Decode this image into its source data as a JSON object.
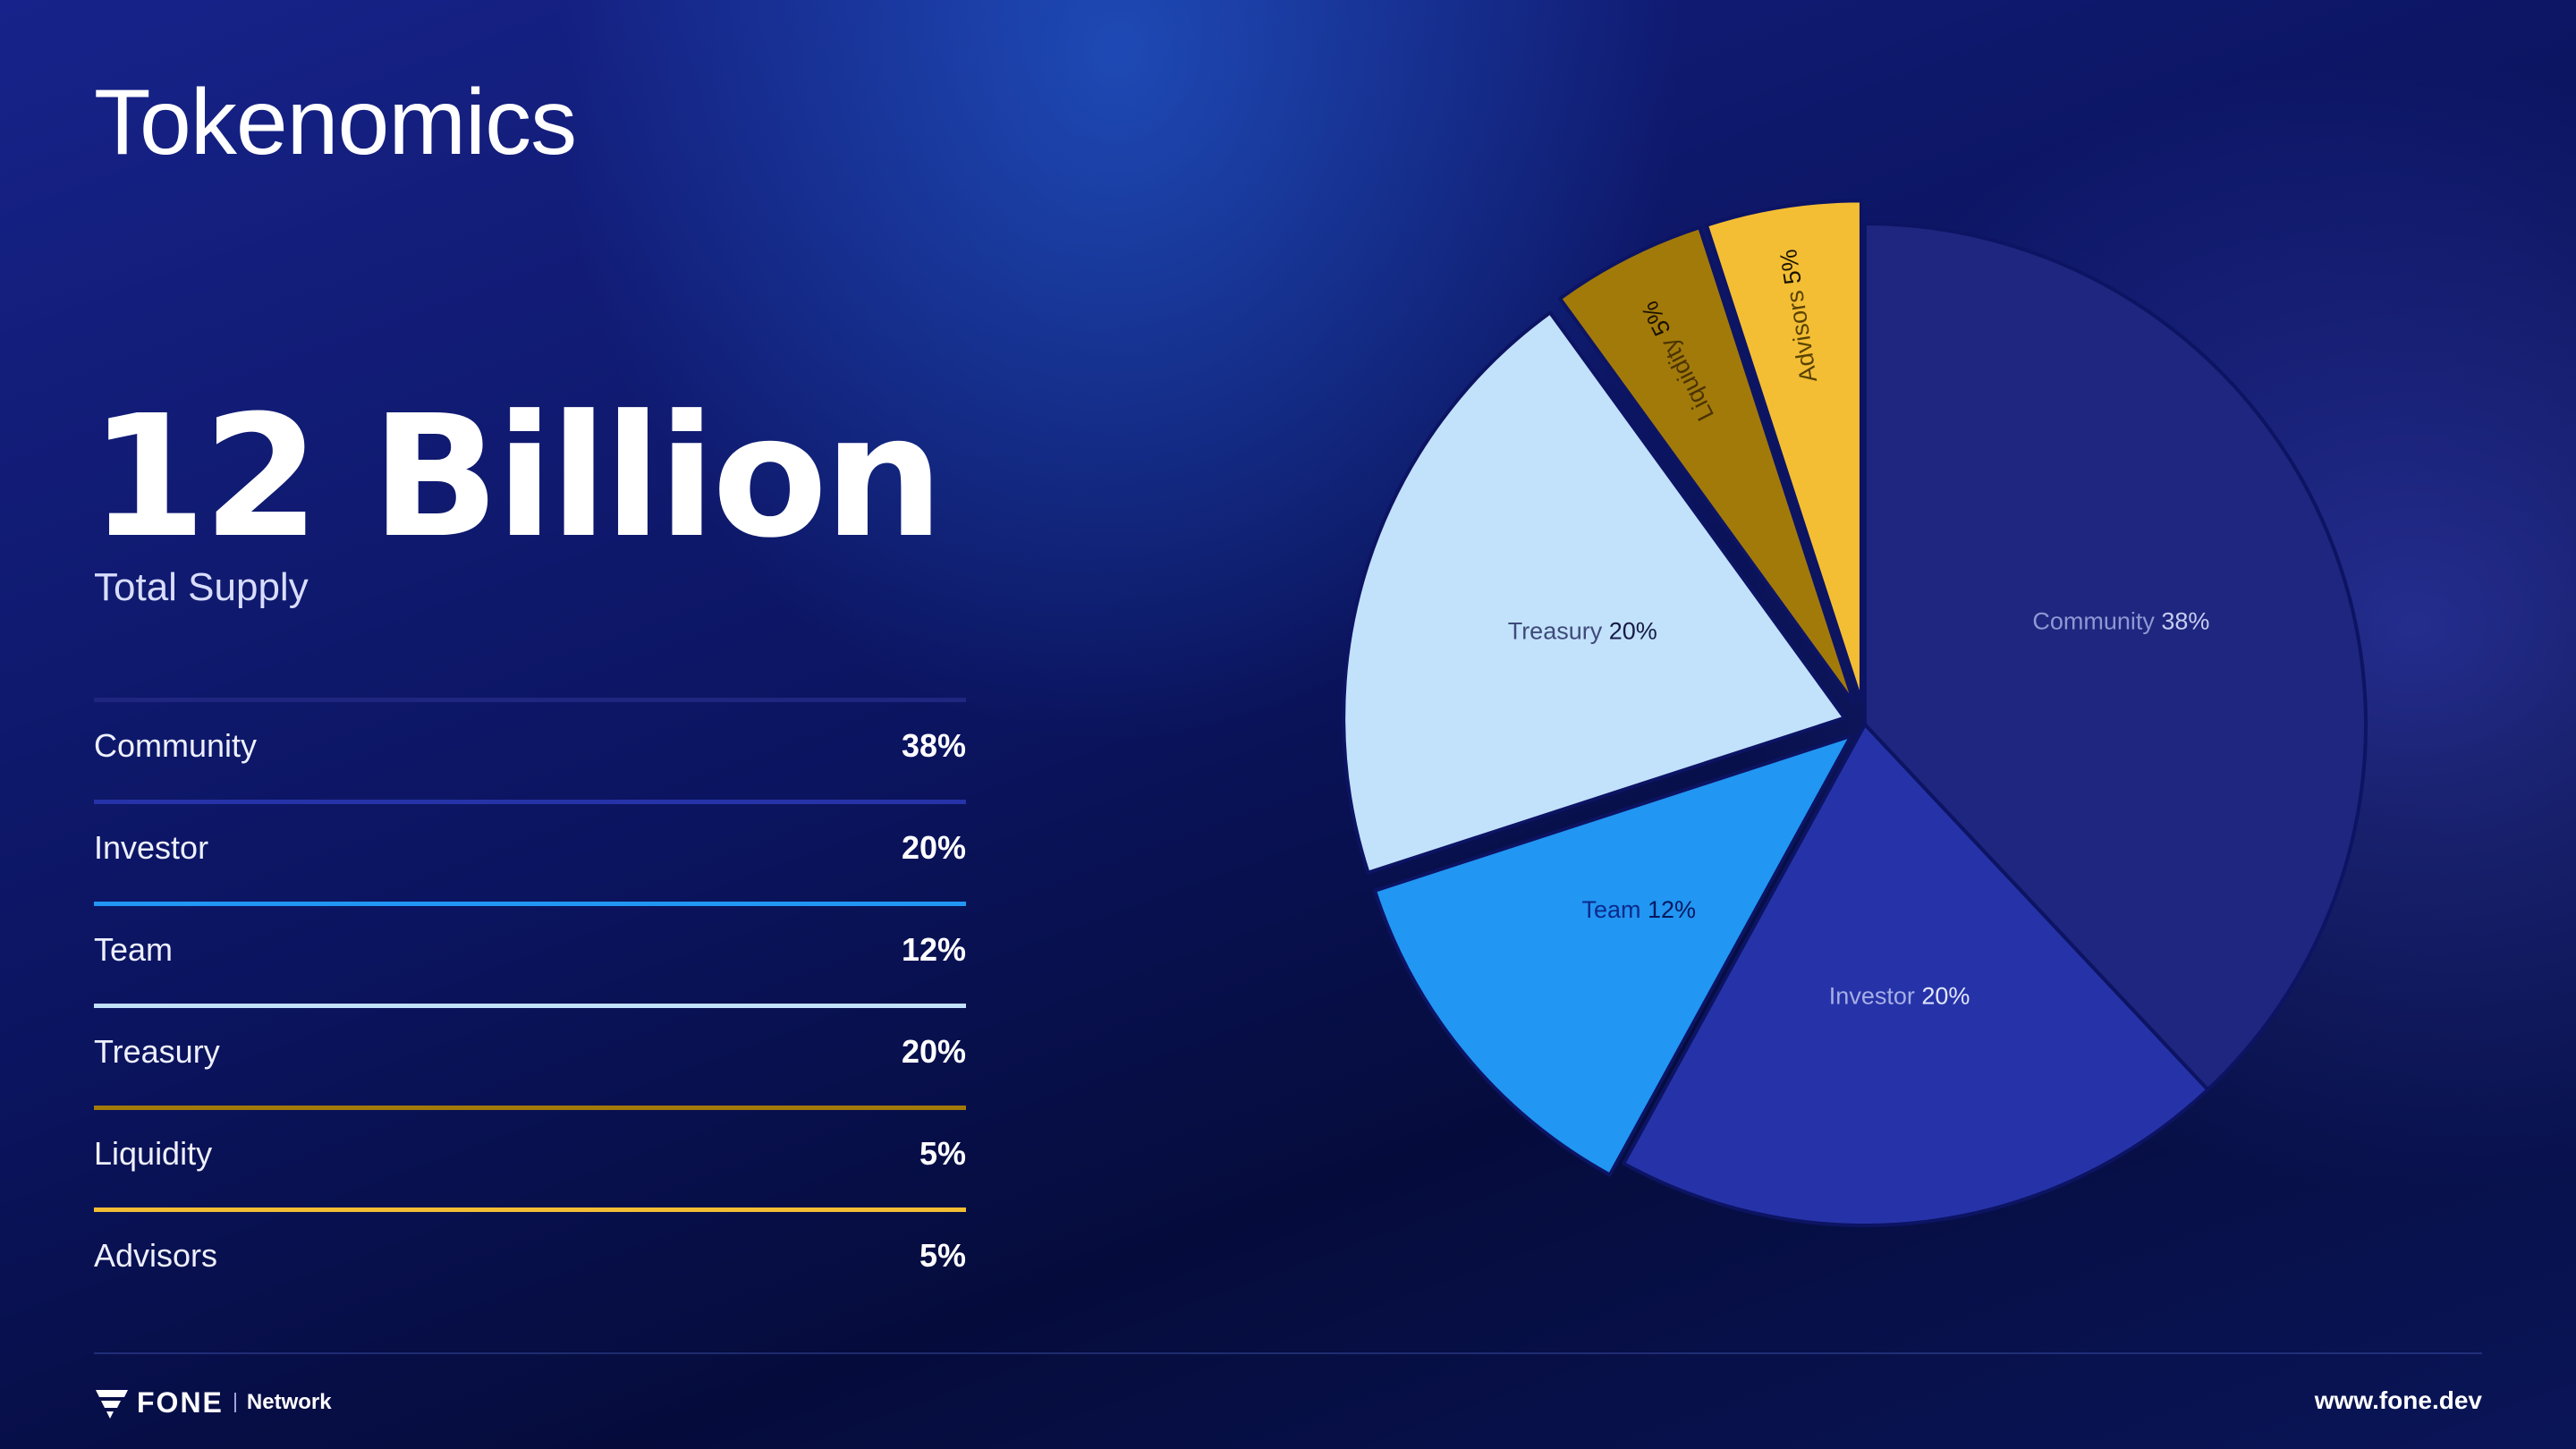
{
  "title": "Tokenomics",
  "supply": {
    "value": "12 Billion",
    "label": "Total Supply"
  },
  "allocations": [
    {
      "name": "Community",
      "value": "38%",
      "color": "#1f267f"
    },
    {
      "name": "Investor",
      "value": "20%",
      "color": "#2633a8"
    },
    {
      "name": "Team",
      "value": "12%",
      "color": "#2196f3"
    },
    {
      "name": "Treasury",
      "value": "20%",
      "color": "#c2e1fb"
    },
    {
      "name": "Liquidity",
      "value": "5%",
      "color": "#a27a0a"
    },
    {
      "name": "Advisors",
      "value": "5%",
      "color": "#f3be34"
    }
  ],
  "chart_data": {
    "type": "pie",
    "categories": [
      "Community",
      "Investor",
      "Team",
      "Treasury",
      "Liquidity",
      "Advisors"
    ],
    "values": [
      38,
      20,
      12,
      20,
      5,
      5
    ],
    "unit": "%",
    "colors": [
      "#1f267f",
      "#2633a8",
      "#2196f3",
      "#c2e1fb",
      "#a27a0a",
      "#f3be34"
    ],
    "slice_labels": [
      {
        "name": "Community",
        "value": "38%"
      },
      {
        "name": "Investor",
        "value": "20%"
      },
      {
        "name": "Team",
        "value": "12%"
      },
      {
        "name": "Treasury",
        "value": "20%"
      },
      {
        "name": "Liquidity",
        "value": "5%"
      },
      {
        "name": "Advisors",
        "value": "5%"
      }
    ],
    "label_colors": {
      "Community": [
        "#8f98d4",
        "#c8cdf2"
      ],
      "Investor": [
        "#a6aee6",
        "#e3e6ff"
      ],
      "Team": [
        "#0b2a8c",
        "#06185e"
      ],
      "Treasury": [
        "#3f4a7a",
        "#151b45"
      ],
      "Liquidity": [
        "#4a3300",
        "#1a1000"
      ],
      "Advisors": [
        "#5a4200",
        "#1d1500"
      ]
    },
    "start_angle": "12 o'clock",
    "direction": "clockwise",
    "exploded": [
      "Team",
      "Treasury",
      "Liquidity",
      "Advisors"
    ]
  },
  "footer": {
    "brand": "FONE",
    "brand_sub": "Network",
    "url": "www.fone.dev"
  }
}
